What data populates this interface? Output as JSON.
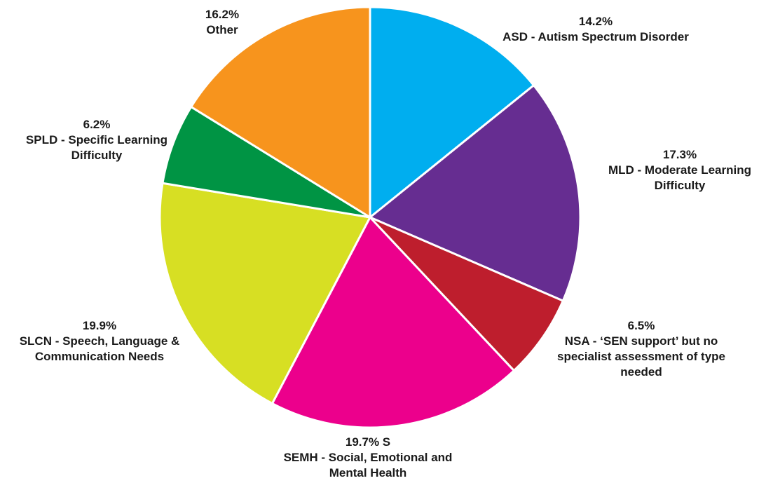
{
  "chart_data": {
    "type": "pie",
    "slices": [
      {
        "pct_label": "14.2%",
        "label_lines": [
          "ASD - Autism Spectrum Disorder"
        ],
        "value": 14.2,
        "color": "#00AEEF"
      },
      {
        "pct_label": "17.3%",
        "label_lines": [
          "MLD - Moderate Learning",
          "Difficulty"
        ],
        "value": 17.3,
        "color": "#662D91"
      },
      {
        "pct_label": "6.5%",
        "label_lines": [
          "NSA - ‘SEN support’ but no",
          "specialist assessment of type",
          "needed"
        ],
        "value": 6.5,
        "color": "#BE1E2D"
      },
      {
        "pct_label": "19.7% S",
        "label_lines": [
          "SEMH - Social, Emotional and",
          "Mental Health"
        ],
        "value": 19.7,
        "color": "#EC008C"
      },
      {
        "pct_label": "19.9%",
        "label_lines": [
          "SLCN - Speech, Language &",
          "Communication Needs"
        ],
        "value": 19.9,
        "color": "#D7DF23"
      },
      {
        "pct_label": "6.2%",
        "label_lines": [
          "SPLD - Specific Learning",
          "Difficulty"
        ],
        "value": 6.2,
        "color": "#009444"
      },
      {
        "pct_label": "16.2%",
        "label_lines": [
          "Other"
        ],
        "value": 16.2,
        "color": "#F7941D"
      }
    ]
  }
}
